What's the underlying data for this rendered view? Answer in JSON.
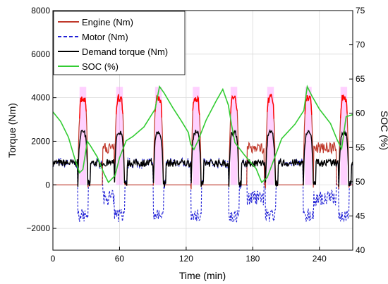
{
  "chart_data": {
    "type": "line",
    "xlabel": "Time (min)",
    "ylabel_left": "Torque (Nm)",
    "ylabel_right": "SOC (%)",
    "xlim": [
      0,
      270
    ],
    "ylim_left": [
      -3000,
      8000
    ],
    "ylim_right": [
      40,
      75
    ],
    "x_ticks": [
      "0",
      "60",
      "120",
      "180",
      "240"
    ],
    "y_ticks_left": [
      "−2000",
      "0",
      "2000",
      "4000",
      "6000",
      "8000"
    ],
    "y_ticks_right": [
      "40",
      "45",
      "50",
      "55",
      "60",
      "65",
      "70",
      "75"
    ],
    "grid": true,
    "legend_position": "top-left",
    "colors": {
      "engine": "#c0392b",
      "engine_hi": "#ff0000",
      "motor": "#1f1fd6",
      "demand": "#000000",
      "soc": "#33cc33",
      "band": "#ff99ff"
    },
    "legend": [
      {
        "key": "engine",
        "label": "Engine (Nm)",
        "style": "solid",
        "color": "#c0392b"
      },
      {
        "key": "motor",
        "label": "Motor (Nm)",
        "style": "dashed",
        "color": "#1f1fd6"
      },
      {
        "key": "demand",
        "label": "Demand torque (Nm)",
        "style": "solid",
        "color": "#000000"
      },
      {
        "key": "soc",
        "label": "SOC (%)",
        "style": "solid",
        "color": "#33cc33"
      }
    ],
    "cycle_peaks_min": [
      27,
      60,
      95,
      129,
      163,
      196,
      230,
      262
    ],
    "series": [
      {
        "name": "SOC (%)",
        "axis": "right",
        "x": [
          0,
          7,
          14,
          20,
          24,
          27,
          31,
          34,
          40,
          46,
          50,
          56,
          60,
          66,
          72,
          82,
          92,
          96,
          100,
          108,
          116,
          122,
          124,
          127,
          131,
          138,
          147,
          153,
          158,
          161,
          164,
          172,
          183,
          188,
          193,
          198,
          206,
          218,
          226,
          229,
          233,
          240,
          250,
          256,
          260,
          264,
          270
        ],
        "y": [
          60.2,
          58.8,
          56.5,
          53.2,
          51.3,
          51.8,
          55.9,
          55.2,
          53.6,
          51.2,
          49.9,
          50.9,
          53.5,
          56,
          56.6,
          58,
          60.6,
          63.9,
          63,
          60.8,
          58.8,
          57.2,
          55.5,
          54.7,
          56.1,
          59,
          61.8,
          63.5,
          61.2,
          58.2,
          55.7,
          54,
          51.9,
          49.9,
          50.6,
          52.8,
          56.3,
          58.4,
          60.4,
          63.9,
          62.6,
          60.6,
          58.5,
          56.1,
          54.8,
          59.5,
          59.8
        ]
      }
    ]
  }
}
